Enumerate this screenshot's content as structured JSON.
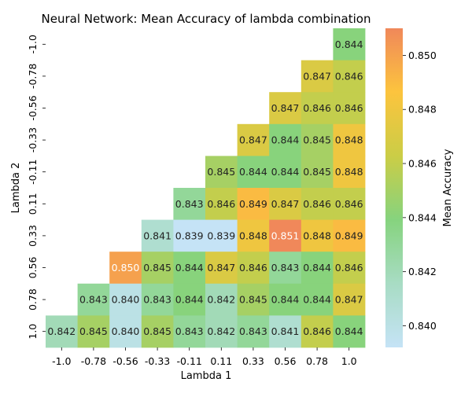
{
  "chart_data": {
    "type": "heatmap",
    "title": "Neural Network: Mean Accuracy of lambda combination",
    "xlabel": "Lambda 1",
    "ylabel": "Lambda 2",
    "x_categories": [
      "-1.0",
      "-0.78",
      "-0.56",
      "-0.33",
      "-0.11",
      "0.11",
      "0.33",
      "0.56",
      "0.78",
      "1.0"
    ],
    "y_categories": [
      "-1.0",
      "-0.78",
      "-0.56",
      "-0.33",
      "-0.11",
      "0.11",
      "0.33",
      "0.56",
      "0.78",
      "1.0"
    ],
    "values": [
      [
        null,
        null,
        null,
        null,
        null,
        null,
        null,
        null,
        null,
        0.844
      ],
      [
        null,
        null,
        null,
        null,
        null,
        null,
        null,
        null,
        0.847,
        0.846
      ],
      [
        null,
        null,
        null,
        null,
        null,
        null,
        null,
        0.847,
        0.846,
        0.846
      ],
      [
        null,
        null,
        null,
        null,
        null,
        null,
        0.847,
        0.844,
        0.845,
        0.848
      ],
      [
        null,
        null,
        null,
        null,
        null,
        0.845,
        0.844,
        0.844,
        0.845,
        0.848
      ],
      [
        null,
        null,
        null,
        null,
        0.843,
        0.846,
        0.849,
        0.847,
        0.846,
        0.846
      ],
      [
        null,
        null,
        null,
        0.841,
        0.839,
        0.839,
        0.848,
        0.851,
        0.848,
        0.849
      ],
      [
        null,
        null,
        0.85,
        0.845,
        0.844,
        0.847,
        0.846,
        0.843,
        0.844,
        0.846
      ],
      [
        null,
        0.843,
        0.84,
        0.843,
        0.844,
        0.842,
        0.845,
        0.844,
        0.844,
        0.847
      ],
      [
        0.842,
        0.845,
        0.84,
        0.845,
        0.843,
        0.842,
        0.843,
        0.841,
        0.846,
        0.844
      ]
    ],
    "colorbar": {
      "label": "Mean Accuracy",
      "range": [
        0.8392,
        0.851
      ],
      "ticks": [
        0.84,
        0.842,
        0.844,
        0.846,
        0.848,
        0.85
      ],
      "tick_labels": [
        "0.840",
        "0.842",
        "0.844",
        "0.846",
        "0.848",
        "0.850"
      ],
      "colors": [
        "#c5e3f6",
        "#a8dcc4",
        "#86d37e",
        "#cbcd46",
        "#fcc43e",
        "#f0885a"
      ]
    }
  }
}
